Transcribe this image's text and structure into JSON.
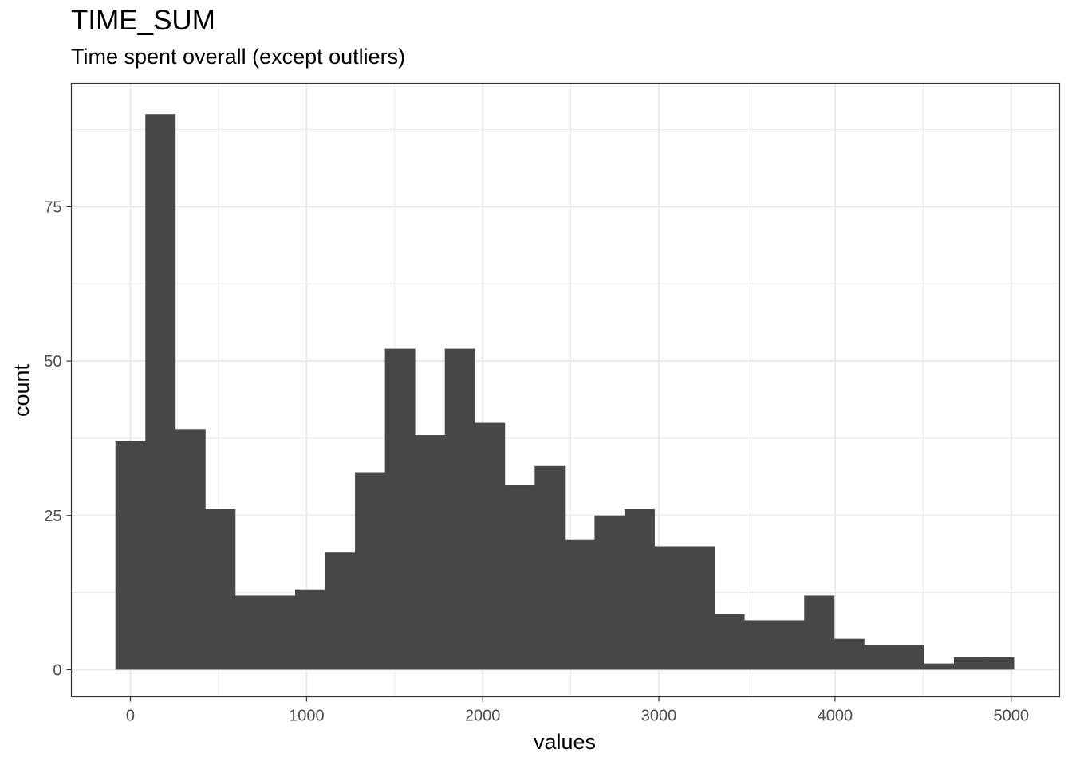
{
  "chart_data": {
    "type": "bar",
    "title": "TIME_SUM",
    "subtitle": "Time spent overall (except outliers)",
    "xlabel": "values",
    "ylabel": "count",
    "xlim": [
      -335,
      5275
    ],
    "ylim": [
      -4.4,
      95
    ],
    "x_ticks": [
      0,
      1000,
      2000,
      3000,
      4000,
      5000
    ],
    "y_ticks": [
      0,
      25,
      50,
      75
    ],
    "bin_width": 170,
    "bins": [
      {
        "x0": -85,
        "x1": 85,
        "count": 37
      },
      {
        "x0": 85,
        "x1": 255,
        "count": 90
      },
      {
        "x0": 255,
        "x1": 425,
        "count": 39
      },
      {
        "x0": 425,
        "x1": 595,
        "count": 26
      },
      {
        "x0": 595,
        "x1": 765,
        "count": 12
      },
      {
        "x0": 765,
        "x1": 935,
        "count": 12
      },
      {
        "x0": 935,
        "x1": 1105,
        "count": 13
      },
      {
        "x0": 1105,
        "x1": 1275,
        "count": 19
      },
      {
        "x0": 1275,
        "x1": 1445,
        "count": 32
      },
      {
        "x0": 1445,
        "x1": 1615,
        "count": 52
      },
      {
        "x0": 1615,
        "x1": 1785,
        "count": 38
      },
      {
        "x0": 1785,
        "x1": 1955,
        "count": 52
      },
      {
        "x0": 1955,
        "x1": 2125,
        "count": 40
      },
      {
        "x0": 2125,
        "x1": 2295,
        "count": 30
      },
      {
        "x0": 2295,
        "x1": 2465,
        "count": 33
      },
      {
        "x0": 2465,
        "x1": 2635,
        "count": 21
      },
      {
        "x0": 2635,
        "x1": 2805,
        "count": 25
      },
      {
        "x0": 2805,
        "x1": 2975,
        "count": 26
      },
      {
        "x0": 2975,
        "x1": 3145,
        "count": 20
      },
      {
        "x0": 3145,
        "x1": 3315,
        "count": 20
      },
      {
        "x0": 3315,
        "x1": 3485,
        "count": 9
      },
      {
        "x0": 3485,
        "x1": 3655,
        "count": 8
      },
      {
        "x0": 3655,
        "x1": 3825,
        "count": 8
      },
      {
        "x0": 3825,
        "x1": 3995,
        "count": 12
      },
      {
        "x0": 3995,
        "x1": 4165,
        "count": 5
      },
      {
        "x0": 4165,
        "x1": 4335,
        "count": 4
      },
      {
        "x0": 4335,
        "x1": 4505,
        "count": 4
      },
      {
        "x0": 4505,
        "x1": 4675,
        "count": 1
      },
      {
        "x0": 4675,
        "x1": 4845,
        "count": 2
      },
      {
        "x0": 4845,
        "x1": 5015,
        "count": 2
      }
    ],
    "grid": true,
    "bar_color": "#474747",
    "grid_color": "#ebebeb",
    "panel_border_color": "#333333"
  }
}
